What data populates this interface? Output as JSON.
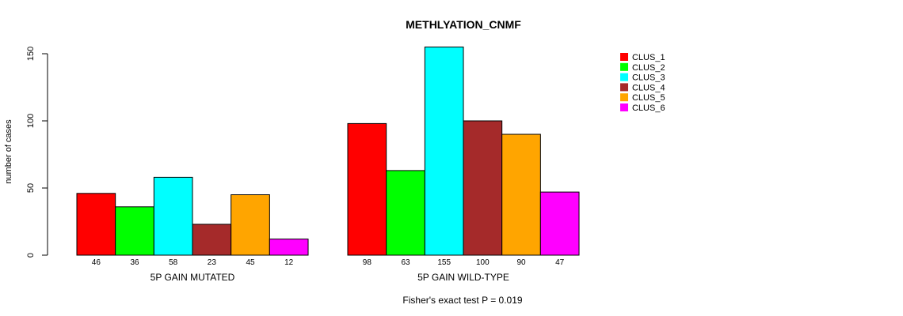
{
  "chart_data": {
    "type": "bar",
    "title": "METHLYATION_CNMF",
    "ylabel": "number of cases",
    "ylim": [
      0,
      155
    ],
    "yticks": [
      0,
      50,
      100,
      150
    ],
    "series_names": [
      "CLUS_1",
      "CLUS_2",
      "CLUS_3",
      "CLUS_4",
      "CLUS_5",
      "CLUS_6"
    ],
    "colors": [
      "#ff0000",
      "#00ff00",
      "#00ffff",
      "#a52a2a",
      "#ffa500",
      "#ff00ff"
    ],
    "groups": [
      {
        "label": "5P GAIN MUTATED",
        "values": [
          46,
          36,
          58,
          23,
          45,
          12
        ],
        "value_labels": [
          "46",
          "36",
          "58",
          "23",
          "45",
          "12"
        ]
      },
      {
        "label": "5P GAIN WILD-TYPE",
        "values": [
          98,
          63,
          155,
          100,
          90,
          47
        ],
        "value_labels": [
          "98",
          "63",
          "155",
          "100",
          "90",
          "47"
        ]
      }
    ],
    "footnote": "Fisher's exact test P = 0.019"
  }
}
